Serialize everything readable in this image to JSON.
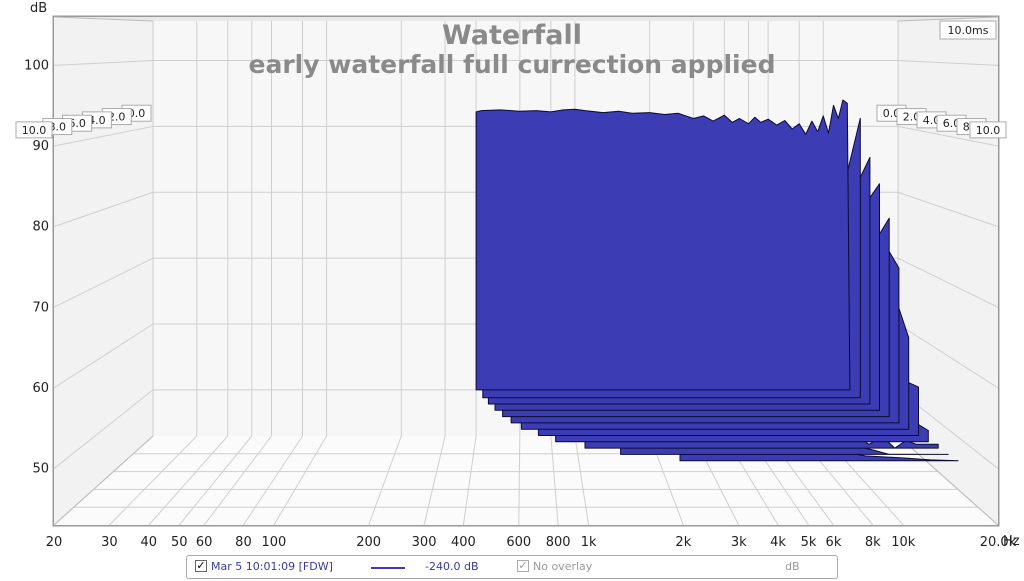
{
  "chart_data": {
    "type": "area",
    "title": "Waterfall",
    "subtitle": "early waterfall full currection applied",
    "ylabel": "dB",
    "xlabel": "Hz",
    "x_scale": "log",
    "xlim": [
      20,
      20000
    ],
    "ylim": [
      43,
      106
    ],
    "x_ticks": [
      20,
      30,
      40,
      50,
      60,
      80,
      100,
      200,
      300,
      400,
      600,
      800,
      1000,
      2000,
      3000,
      4000,
      5000,
      6000,
      8000,
      10000,
      20000
    ],
    "x_tick_labels": [
      "20",
      "30",
      "40",
      "50",
      "60",
      "80",
      "100",
      "200",
      "300",
      "400",
      "600",
      "800",
      "1k",
      "2k",
      "3k",
      "4k",
      "5k",
      "6k",
      "8k",
      "10k",
      "20.0k"
    ],
    "y_ticks": [
      50,
      60,
      70,
      80,
      90,
      100
    ],
    "y_tick_labels": [
      "50",
      "60",
      "70",
      "80",
      "90",
      "100"
    ],
    "time_axis_label": "10.0ms",
    "time_slice_labels": [
      "0.0",
      "2.0",
      "4.0",
      "6.0",
      "8.0",
      "10.0"
    ],
    "floor_db": 50,
    "fill_color": "#3c3cb4",
    "series": [
      {
        "t": 0.0,
        "start_hz": 400,
        "end_hz": 12800,
        "x": [
          400,
          420,
          500,
          600,
          700,
          800,
          900,
          1000,
          1100,
          1300,
          1500,
          1700,
          2000,
          2300,
          2600,
          3000,
          3300,
          3600,
          4000,
          4300,
          4600,
          5000,
          5300,
          5600,
          6000,
          6500,
          7000,
          7500,
          8000,
          8500,
          9000,
          9500,
          10000,
          10500,
          11000,
          11500,
          12000,
          12500
        ],
        "y": [
          92.2,
          92.4,
          92.5,
          92.3,
          92.4,
          92.2,
          92.5,
          92.6,
          92.4,
          92.1,
          92.3,
          92.0,
          92.1,
          91.8,
          92.0,
          91.2,
          91.6,
          90.8,
          91.7,
          90.6,
          91.2,
          90.4,
          91.4,
          90.6,
          91.1,
          90.2,
          90.9,
          89.6,
          90.4,
          88.8,
          90.8,
          89.2,
          91.6,
          89.0,
          93.2,
          91.2,
          94.0,
          93.5
        ]
      },
      {
        "t": 1.0,
        "start_hz": 430,
        "end_hz": 13000,
        "x": [
          430,
          500,
          600,
          700,
          800,
          1000,
          1200,
          1500,
          1800,
          2000,
          2400,
          2800,
          3200,
          3600,
          4000,
          4500,
          5000,
          5500,
          6000,
          7000,
          8000,
          9000,
          10000,
          11000,
          12000,
          13000
        ],
        "y": [
          81.0,
          80.3,
          79.4,
          78.5,
          77.8,
          76.2,
          75.0,
          73.2,
          72.0,
          70.5,
          72.5,
          75.5,
          73.0,
          76.5,
          80.8,
          78.0,
          82.0,
          77.5,
          80.5,
          75.0,
          78.0,
          81.0,
          84.5,
          80.0,
          86.0,
          91.5
        ]
      },
      {
        "t": 1.8,
        "start_hz": 455,
        "end_hz": 13300,
        "x": [
          455,
          550,
          650,
          750,
          900,
          1000,
          1100,
          1300,
          1500,
          1700,
          2000,
          2400,
          2800,
          3200,
          3600,
          4000,
          4500,
          5000,
          5500,
          6000,
          7000,
          8000,
          9000,
          10000,
          11000,
          12000,
          13300
        ],
        "y": [
          80.2,
          79.5,
          78.4,
          77.5,
          76.6,
          77.8,
          77.0,
          74.5,
          73.8,
          72.0,
          69.0,
          72.0,
          75.5,
          73.0,
          76.0,
          79.0,
          74.5,
          77.0,
          72.0,
          76.5,
          72.0,
          75.5,
          74.5,
          80.0,
          76.5,
          82.5,
          86.0
        ]
      },
      {
        "t": 2.6,
        "start_hz": 485,
        "end_hz": 13600,
        "x": [
          485,
          600,
          700,
          800,
          900,
          1000,
          1100,
          1300,
          1500,
          1700,
          2000,
          2400,
          2800,
          3200,
          3600,
          4000,
          4500,
          5000,
          5500,
          6000,
          7000,
          8000,
          9000,
          10000,
          11000,
          12000,
          13600
        ],
        "y": [
          79.5,
          78.0,
          77.2,
          76.6,
          77.8,
          78.4,
          77.6,
          75.0,
          73.0,
          71.5,
          69.0,
          71.0,
          74.0,
          72.0,
          74.5,
          77.0,
          73.0,
          75.5,
          71.0,
          75.0,
          70.5,
          74.0,
          72.0,
          77.5,
          73.5,
          79.5,
          82.5
        ]
      },
      {
        "t": 3.4,
        "start_hz": 520,
        "end_hz": 13900,
        "x": [
          520,
          620,
          720,
          850,
          1000,
          1100,
          1300,
          1500,
          1700,
          2000,
          2300,
          2600,
          3000,
          3400,
          3800,
          4200,
          4700,
          5200,
          5700,
          6200,
          7000,
          8000,
          9000,
          10000,
          11000,
          12000,
          13900
        ],
        "y": [
          79.0,
          77.5,
          76.8,
          76.3,
          76.0,
          75.2,
          73.5,
          72.5,
          71.0,
          69.5,
          70.0,
          72.5,
          71.0,
          73.0,
          75.0,
          71.5,
          73.5,
          70.0,
          73.0,
          69.5,
          72.0,
          70.0,
          73.0,
          70.5,
          76.0,
          74.0,
          78.0
        ]
      },
      {
        "t": 4.2,
        "start_hz": 560,
        "end_hz": 14200,
        "x": [
          560,
          700,
          850,
          1000,
          1200,
          1400,
          1600,
          1800,
          2000,
          2300,
          2600,
          3000,
          3300,
          3700,
          4100,
          4500,
          5000,
          5500,
          6000,
          6600,
          7200,
          8000,
          9000,
          10000,
          11000,
          12000,
          13000,
          14200
        ],
        "y": [
          78.0,
          76.5,
          75.8,
          76.0,
          75.0,
          73.5,
          72.5,
          71.0,
          69.5,
          68.0,
          69.5,
          71.0,
          69.5,
          72.0,
          70.0,
          72.5,
          69.0,
          71.0,
          68.5,
          71.5,
          68.0,
          69.0,
          70.5,
          68.0,
          72.0,
          69.5,
          74.0,
          71.5
        ]
      },
      {
        "t": 5.0,
        "start_hz": 610,
        "end_hz": 14500,
        "x": [
          610,
          700,
          800,
          900,
          1000,
          1100,
          1300,
          1500,
          1700,
          2000,
          2300,
          2600,
          3000,
          3300,
          3700,
          4100,
          4500,
          5000,
          5500,
          6000,
          6600,
          7200,
          8000,
          9000,
          10000,
          11000,
          12000,
          13000,
          14500
        ],
        "y": [
          76.5,
          76.0,
          75.6,
          75.5,
          75.6,
          75.2,
          74.5,
          73.5,
          72.0,
          70.0,
          68.0,
          69.0,
          67.5,
          69.5,
          68.0,
          70.0,
          67.0,
          69.0,
          66.0,
          68.5,
          65.5,
          68.0,
          64.5,
          66.5,
          63.5,
          67.0,
          64.0,
          68.0,
          62.5
        ]
      },
      {
        "t": 5.8,
        "start_hz": 700,
        "end_hz": 14800,
        "x": [
          700,
          800,
          900,
          1000,
          1200,
          1400,
          1600,
          1800,
          2000,
          2200,
          2500,
          2800,
          3100,
          3400,
          3700,
          4000,
          4500,
          5000,
          5500,
          6000,
          6500,
          7000,
          7500,
          8000,
          9000,
          10000,
          11000,
          12000,
          13000,
          14800
        ],
        "y": [
          76.0,
          75.8,
          75.0,
          74.0,
          73.0,
          73.2,
          72.0,
          70.0,
          67.0,
          65.5,
          67.5,
          68.5,
          67.5,
          66.5,
          67.0,
          65.5,
          66.5,
          64.5,
          66.0,
          63.5,
          62.5,
          64.5,
          62.0,
          63.5,
          60.0,
          61.5,
          59.0,
          62.0,
          57.5,
          56.5
        ]
      },
      {
        "t": 6.6,
        "start_hz": 800,
        "end_hz": 15100,
        "x": [
          800,
          900,
          1000,
          1200,
          1400,
          1600,
          1800,
          2000,
          2200,
          2400,
          2600,
          2800,
          3000,
          3300,
          3600,
          4000,
          4300,
          4700,
          5000,
          5500,
          6000,
          6500,
          7000,
          7500,
          8000,
          8500,
          9000,
          10000,
          11000,
          12000,
          13000,
          15100
        ],
        "y": [
          72.5,
          74.0,
          75.2,
          76.5,
          76.8,
          75.5,
          72.0,
          69.5,
          67.5,
          66.0,
          67.0,
          65.5,
          64.5,
          65.5,
          63.5,
          62.5,
          63.5,
          62.0,
          61.5,
          60.5,
          59.5,
          60.5,
          58.5,
          59.0,
          55.0,
          53.5,
          55.0,
          52.5,
          55.0,
          51.5,
          53.0,
          51.5
        ]
      },
      {
        "t": 7.4,
        "start_hz": 1000,
        "end_hz": 15400,
        "x": [
          1000,
          1200,
          1400,
          1600,
          1800,
          2000,
          2200,
          2500,
          2800,
          3100,
          3400,
          3700,
          4000,
          4300,
          4700,
          5000,
          5500,
          6000,
          6500,
          7000,
          7500,
          8000,
          9000,
          10000,
          11000,
          12000,
          13000,
          15400
        ],
        "y": [
          72.5,
          72.0,
          70.0,
          68.5,
          66.8,
          65.0,
          63.5,
          63.0,
          63.8,
          62.0,
          61.0,
          60.0,
          60.5,
          59.5,
          58.0,
          59.0,
          57.5,
          56.5,
          57.0,
          55.0,
          54.0,
          52.0,
          50.5,
          51.5,
          50.0,
          51.0,
          50.5,
          50.5
        ]
      },
      {
        "t": 8.2,
        "start_hz": 1300,
        "end_hz": 15700,
        "x": [
          1300,
          1500,
          1700,
          1900,
          2100,
          2400,
          2700,
          3000,
          3300,
          3600,
          4000,
          4400,
          4800,
          5200,
          5600,
          6000,
          6500,
          7000,
          7500,
          8000,
          9000,
          10000,
          11000,
          12000,
          13000,
          15700
        ],
        "y": [
          62.5,
          61.5,
          60.8,
          60.0,
          59.3,
          58.7,
          58.2,
          57.8,
          57.5,
          57.2,
          57.0,
          56.2,
          55.6,
          55.0,
          54.4,
          53.8,
          53.0,
          52.3,
          51.6,
          51.0,
          50.5,
          50.0,
          50.0,
          50.0,
          50.0,
          50.0
        ]
      },
      {
        "t": 9.0,
        "start_hz": 2000,
        "end_hz": 16000,
        "x": [
          2000,
          2300,
          2600,
          2900,
          3200,
          3500,
          3900,
          4300,
          4700,
          5100,
          5500,
          6000,
          6500,
          7000,
          7500,
          8000,
          9000,
          10000,
          11000,
          12000,
          13000,
          16000
        ],
        "y": [
          54.5,
          54.0,
          53.6,
          53.2,
          52.9,
          52.6,
          52.3,
          52.0,
          51.8,
          51.6,
          51.4,
          51.2,
          51.0,
          50.9,
          50.8,
          50.6,
          50.5,
          50.4,
          50.3,
          50.2,
          50.1,
          50.0
        ]
      }
    ]
  },
  "legend": {
    "item1_checked": "✓",
    "item1_label": "Mar 5 10:01:09 [FDW]",
    "item1_value": "-240.0 dB",
    "item1_color": "#3c3cb4",
    "item2_checked": "✓",
    "item2_label": "No overlay",
    "item2_unit": "dB"
  }
}
